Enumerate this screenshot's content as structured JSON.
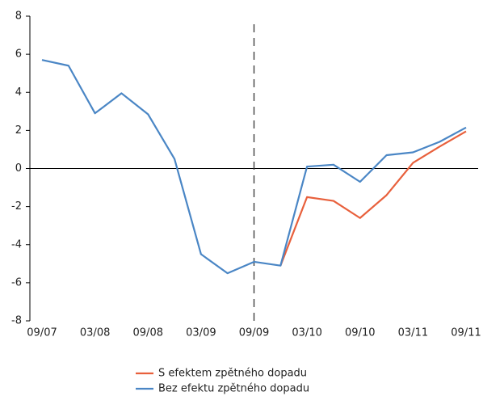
{
  "chart_data": {
    "type": "line",
    "categories": [
      "09/07",
      null,
      "03/08",
      null,
      "09/08",
      null,
      "03/09",
      null,
      "09/09",
      null,
      "03/10",
      null,
      "09/10",
      null,
      "03/11",
      null,
      "09/11"
    ],
    "series": [
      {
        "name": "S efektem zpětného dopadu",
        "color": "#e8603c",
        "values": [
          null,
          null,
          null,
          null,
          null,
          null,
          null,
          null,
          null,
          -5.1,
          -1.5,
          -1.7,
          -2.6,
          -1.4,
          0.3,
          1.15,
          1.95
        ]
      },
      {
        "name": "Bez efektu zpětného dopadu",
        "color": "#4a86c5",
        "values": [
          5.7,
          5.4,
          2.9,
          3.95,
          2.85,
          0.5,
          -4.5,
          -5.5,
          -4.9,
          -5.1,
          0.1,
          0.2,
          -0.7,
          0.7,
          0.85,
          1.4,
          2.15
        ]
      }
    ],
    "ylim": [
      -8,
      8
    ],
    "yticks": [
      -8,
      -6,
      -4,
      -2,
      0,
      2,
      4,
      6,
      8
    ]
  }
}
